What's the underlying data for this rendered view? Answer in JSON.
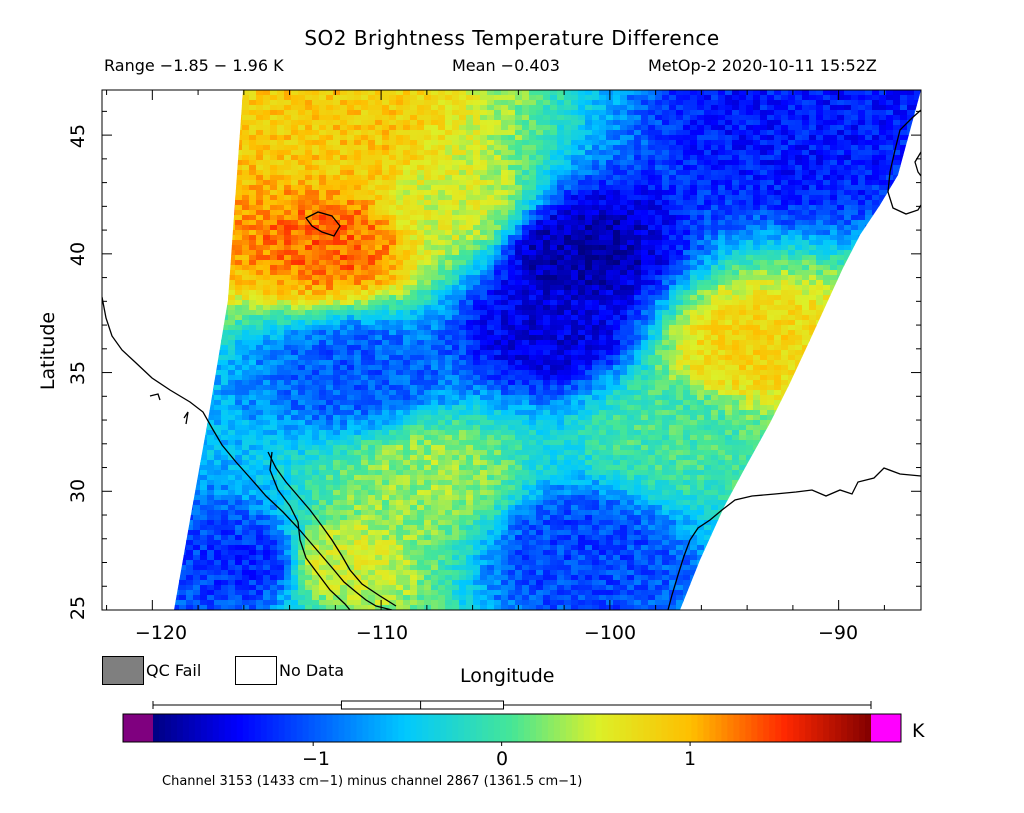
{
  "header": {
    "title": "SO2 Brightness Temperature Difference",
    "range": "Range −1.85 − 1.96 K",
    "mean": "Mean −0.403",
    "satellite": "MetOp-2 2020-10-11 15:52Z"
  },
  "axes": {
    "x_label": "Longitude",
    "y_label": "Latitude",
    "x_ticks": [
      "−120",
      "−110",
      "−100",
      "−90"
    ],
    "y_ticks": [
      "25",
      "30",
      "35",
      "40",
      "45"
    ],
    "lon_range": [
      -122.2,
      -86.4
    ],
    "lat_range": [
      25.0,
      46.9
    ]
  },
  "legend": {
    "qc_fail": "QC Fail",
    "no_data": "No Data",
    "qc_fail_color": "#7f7f7f",
    "no_data_color": "#ffffff"
  },
  "colorbar": {
    "unit": "K",
    "ticks": [
      "−1",
      "0",
      "1"
    ],
    "tick_values": [
      -1,
      0,
      1
    ],
    "range": [
      -1.85,
      1.96
    ],
    "underflow_color": "#7f007f",
    "overflow_color": "#ff00ff",
    "boxplot": {
      "min": -1.85,
      "q1": -0.85,
      "median": -0.43,
      "q3": 0.01,
      "max": 1.96
    }
  },
  "footnote": "Channel 3153 (1433 cm−1) minus channel 2867 (1361.5 cm−1)",
  "chart_data": {
    "type": "heatmap",
    "title": "SO2 Brightness Temperature Difference",
    "xlabel": "Longitude",
    "ylabel": "Latitude",
    "xlim": [
      -122.2,
      -86.4
    ],
    "ylim": [
      25.0,
      46.9
    ],
    "value_range": [
      -1.85,
      1.96
    ],
    "mean": -0.403,
    "unit": "K",
    "regions": [
      {
        "lon": -112.0,
        "lat": 40.5,
        "value": 1.3
      },
      {
        "lon": -111.5,
        "lat": 44.5,
        "value": 0.9
      },
      {
        "lon": -107.0,
        "lat": 42.0,
        "value": 0.5
      },
      {
        "lon": -101.5,
        "lat": 40.0,
        "value": -1.7
      },
      {
        "lon": -102.5,
        "lat": 37.0,
        "value": -1.5
      },
      {
        "lon": -92.0,
        "lat": 45.0,
        "value": -1.3
      },
      {
        "lon": -111.0,
        "lat": 35.0,
        "value": -1.0
      },
      {
        "lon": -94.0,
        "lat": 36.0,
        "value": 0.8
      },
      {
        "lon": -108.0,
        "lat": 30.5,
        "value": 0.3
      },
      {
        "lon": -112.0,
        "lat": 27.0,
        "value": 0.5
      },
      {
        "lon": -101.5,
        "lat": 27.5,
        "value": -1.1
      },
      {
        "lon": -115.5,
        "lat": 27.0,
        "value": -1.2
      },
      {
        "lon": -97.0,
        "lat": 32.5,
        "value": 0.0
      }
    ]
  }
}
